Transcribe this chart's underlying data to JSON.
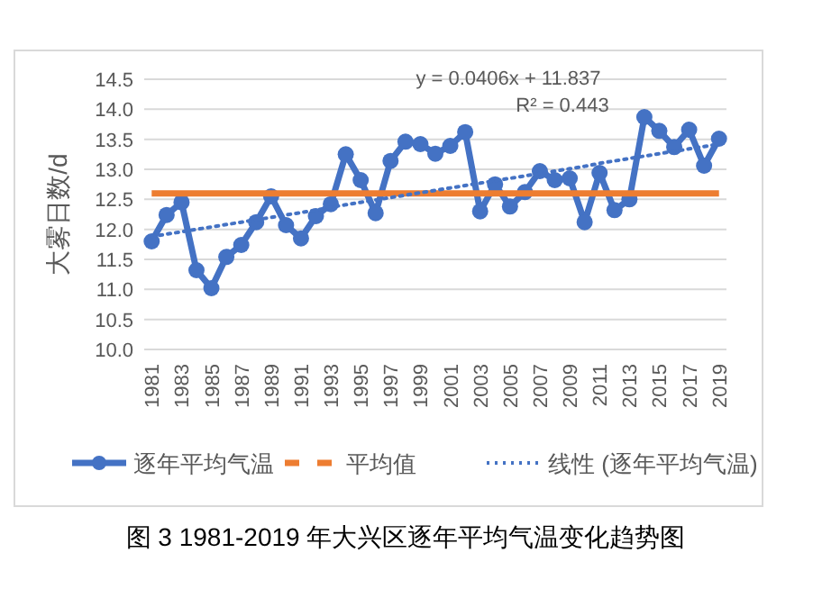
{
  "chart_data": {
    "type": "line",
    "title": "图 3 1981-2019 年大兴区逐年平均气温变化趋势图",
    "ylabel": "大雾日数/d",
    "categories": [
      "1981",
      null,
      "1983",
      null,
      "1985",
      null,
      "1987",
      null,
      "1989",
      null,
      "1991",
      null,
      "1993",
      null,
      "1995",
      null,
      "1997",
      null,
      "1999",
      null,
      "2001",
      null,
      "2003",
      null,
      "2005",
      null,
      "2007",
      null,
      "2009",
      null,
      "2011",
      null,
      "2013",
      null,
      "2015",
      null,
      "2017",
      null,
      "2019"
    ],
    "series": [
      {
        "name": "逐年平均气温",
        "color": "#4472c4",
        "marker": "circle",
        "line_style": "solid",
        "values": [
          11.8,
          12.24,
          12.45,
          11.32,
          11.02,
          11.54,
          11.74,
          12.12,
          12.55,
          12.07,
          11.85,
          12.22,
          12.42,
          13.25,
          12.82,
          12.27,
          13.14,
          13.46,
          13.42,
          13.26,
          13.39,
          13.62,
          12.3,
          12.75,
          12.38,
          12.62,
          12.97,
          12.82,
          12.85,
          12.12,
          12.94,
          12.32,
          12.5,
          13.87,
          13.64,
          13.37,
          13.66,
          13.06,
          13.51
        ]
      },
      {
        "name": "平均值",
        "color": "#ed7d31",
        "marker": "none",
        "line_style": "solid",
        "values": [
          12.6,
          12.6,
          12.6,
          12.6,
          12.6,
          12.6,
          12.6,
          12.6,
          12.6,
          12.6,
          12.6,
          12.6,
          12.6,
          12.6,
          12.6,
          12.6,
          12.6,
          12.6,
          12.6,
          12.6,
          12.6,
          12.6,
          12.6,
          12.6,
          12.6,
          12.6,
          12.6,
          12.6,
          12.6,
          12.6,
          12.6,
          12.6,
          12.6,
          12.6,
          12.6,
          12.6,
          12.6,
          12.6,
          12.6
        ]
      },
      {
        "name": "线性 (逐年平均气温)",
        "color": "#4472c4",
        "marker": "none",
        "line_style": "dotted",
        "values": [
          11.88,
          11.92,
          11.96,
          12.0,
          12.04,
          12.08,
          12.12,
          12.16,
          12.2,
          12.24,
          12.28,
          12.32,
          12.37,
          12.41,
          12.45,
          12.49,
          12.53,
          12.57,
          12.61,
          12.65,
          12.69,
          12.73,
          12.77,
          12.81,
          12.85,
          12.89,
          12.93,
          12.97,
          13.01,
          13.05,
          13.1,
          13.14,
          13.18,
          13.22,
          13.26,
          13.3,
          13.34,
          13.38,
          13.42
        ]
      }
    ],
    "ylim": [
      10.0,
      14.5
    ],
    "yticks": [
      {
        "value": 10,
        "label": "10.0"
      },
      {
        "value": 10.5,
        "label": "10.5"
      },
      {
        "value": 11,
        "label": "11.0"
      },
      {
        "value": 11.5,
        "label": "11.5"
      },
      {
        "value": 12,
        "label": "12.0"
      },
      {
        "value": 12.5,
        "label": "12.5"
      },
      {
        "value": 13,
        "label": "13.0"
      },
      {
        "value": 13.5,
        "label": "13.5"
      },
      {
        "value": 14,
        "label": "14.0"
      },
      {
        "value": 14.5,
        "label": "14.5"
      }
    ],
    "grid": "y",
    "legend": "bottom",
    "annotations": [
      "y = 0.0406x + 11.837",
      "R² = 0.443"
    ]
  }
}
